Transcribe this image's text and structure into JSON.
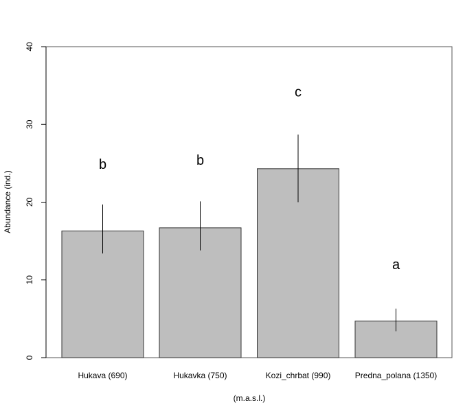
{
  "chart_data": {
    "type": "bar",
    "title": "",
    "xlabel": "(m.a.s.l.)",
    "ylabel": "Abundance (ind.)",
    "ylim": [
      0,
      40
    ],
    "yticks": [
      "0",
      "10",
      "20",
      "30",
      "40"
    ],
    "grid": false,
    "legend": "none",
    "categories": [
      "Hukava (690)",
      "Hukavka (750)",
      "Kozi_chrbat (990)",
      "Predna_polana (1350)"
    ],
    "values": [
      16.3,
      16.7,
      24.3,
      4.7
    ],
    "error_low": [
      13.4,
      13.8,
      20.0,
      3.4
    ],
    "error_high": [
      19.7,
      20.1,
      28.7,
      6.3
    ],
    "letters": [
      "b",
      "b",
      "c",
      "a"
    ],
    "letter_positions": [
      24.3,
      24.8,
      33.6,
      11.4
    ],
    "colors": {
      "bar_fill": "#bebebe",
      "bar_stroke": "#333333",
      "axis": "#000000"
    }
  }
}
